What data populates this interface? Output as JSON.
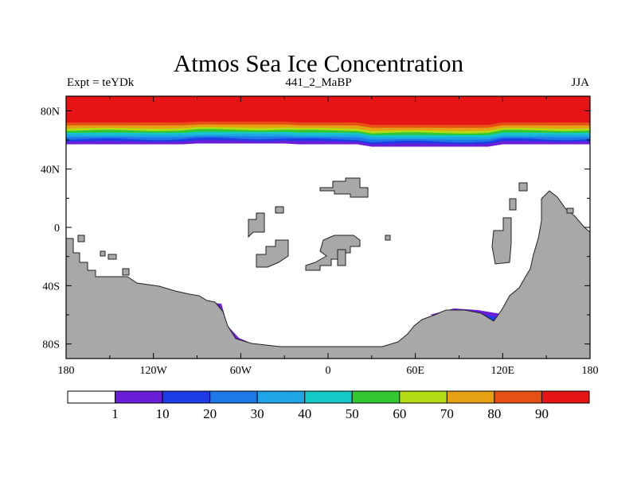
{
  "chart_data": {
    "type": "heatmap",
    "title": "Atmos Sea Ice Concentration",
    "subtitle_left": "Expt = teYDk",
    "subtitle_center": "441_2_MaBP",
    "subtitle_right": "JJA",
    "x_range": [
      -180,
      180
    ],
    "y_range": [
      -90,
      90
    ],
    "x_ticks": [
      {
        "value": -180,
        "label": "180"
      },
      {
        "value": -120,
        "label": "120W"
      },
      {
        "value": -60,
        "label": "60W"
      },
      {
        "value": 0,
        "label": "0"
      },
      {
        "value": 60,
        "label": "60E"
      },
      {
        "value": 120,
        "label": "120E"
      },
      {
        "value": 180,
        "label": "180"
      }
    ],
    "y_ticks": [
      {
        "value": 80,
        "label": "80N"
      },
      {
        "value": 40,
        "label": "40N"
      },
      {
        "value": 0,
        "label": "0"
      },
      {
        "value": -40,
        "label": "40S"
      },
      {
        "value": -80,
        "label": "80S"
      }
    ],
    "colorbar": {
      "colors": [
        "#ffffff",
        "#6a1ed8",
        "#1e3ce6",
        "#1e78e6",
        "#1ea5e6",
        "#14c8c8",
        "#32c832",
        "#b4dc14",
        "#e6a014",
        "#e65014",
        "#e61414"
      ],
      "labels": [
        "1",
        "10",
        "20",
        "30",
        "40",
        "50",
        "60",
        "70",
        "80",
        "90"
      ]
    },
    "north_ice_bands": [
      {
        "color": "#6a1ed8",
        "lat": 57
      },
      {
        "color": "#1e3ce6",
        "lat": 59
      },
      {
        "color": "#1e78e6",
        "lat": 60.5
      },
      {
        "color": "#1ea5e6",
        "lat": 62
      },
      {
        "color": "#14c8c8",
        "lat": 63.5
      },
      {
        "color": "#32c832",
        "lat": 65
      },
      {
        "color": "#b4dc14",
        "lat": 66.5
      },
      {
        "color": "#e6a014",
        "lat": 68
      },
      {
        "color": "#e65014",
        "lat": 70
      },
      {
        "color": "#e61414",
        "lat": 72
      }
    ],
    "land_color": "#a8a8a8"
  }
}
